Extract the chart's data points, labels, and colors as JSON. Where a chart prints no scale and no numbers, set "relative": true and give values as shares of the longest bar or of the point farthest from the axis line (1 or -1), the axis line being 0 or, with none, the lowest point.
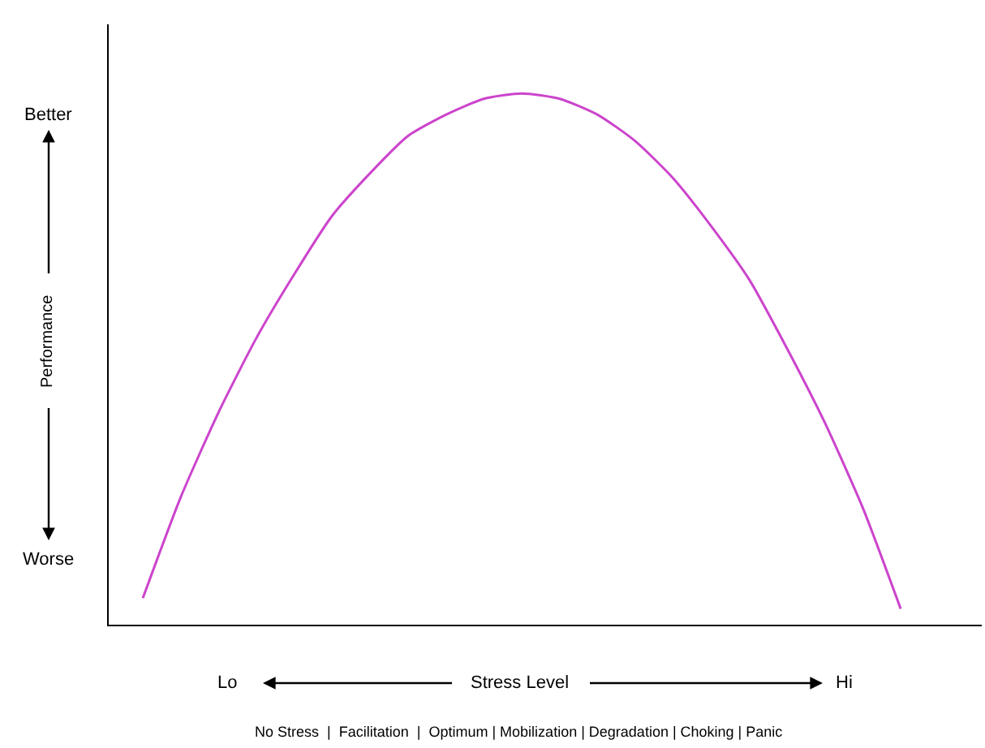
{
  "chart_data": {
    "type": "line",
    "relative": true,
    "categories": [
      null,
      null,
      null,
      null,
      null,
      null,
      null,
      null,
      null,
      null,
      null,
      null,
      null,
      null,
      null,
      null,
      null,
      null,
      null,
      null,
      null
    ],
    "values": [
      0.05,
      0.24,
      0.4,
      0.54,
      0.66,
      0.77,
      0.85,
      0.92,
      0.96,
      0.99,
      1.0,
      0.99,
      0.96,
      0.91,
      0.84,
      0.75,
      0.65,
      0.52,
      0.38,
      0.22,
      0.03
    ],
    "color": "#cc44cc",
    "marker": "none",
    "line_style": "solid",
    "legend": false,
    "annotations": [
      "Better",
      "Worse",
      "Performance",
      "Lo",
      "Stress Level",
      "Hi",
      "No Stress  |  Facilitation  |  Optimum | Mobilization | Degradation | Choking | Panic"
    ]
  }
}
